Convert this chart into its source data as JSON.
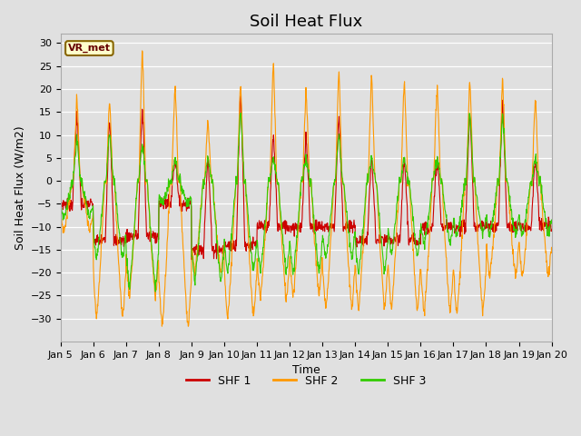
{
  "title": "Soil Heat Flux",
  "xlabel": "Time",
  "ylabel": "Soil Heat Flux (W/m2)",
  "ylim": [
    -35,
    32
  ],
  "yticks": [
    -30,
    -25,
    -20,
    -15,
    -10,
    -5,
    0,
    5,
    10,
    15,
    20,
    25,
    30
  ],
  "colors": {
    "SHF 1": "#cc0000",
    "SHF 2": "#ff9900",
    "SHF 3": "#33cc00"
  },
  "bg_color": "#e0e0e0",
  "annotation_text": "VR_met",
  "annotation_bg": "#ffffcc",
  "annotation_border": "#886600",
  "title_fontsize": 13,
  "axis_label_fontsize": 9,
  "tick_fontsize": 8,
  "n_days": 15,
  "pts_per_day": 96,
  "day_start": 5,
  "shf2_day_peaks": [
    18,
    18,
    29,
    21,
    13,
    21,
    26,
    20,
    24,
    23,
    22,
    21,
    22,
    22,
    18
  ],
  "shf2_night_troughs": [
    -11,
    -30,
    -25,
    -32,
    -20,
    -30,
    -26,
    -25,
    -28,
    -28,
    -28,
    -29,
    -29,
    -21,
    -21
  ],
  "shf1_day_peaks": [
    14,
    14,
    16,
    5,
    5,
    19,
    10,
    10,
    14,
    5,
    5,
    5,
    15,
    17,
    5
  ],
  "shf1_night_vals": [
    -5,
    -13,
    -12,
    -5,
    -15,
    -14,
    -10,
    -10,
    -10,
    -13,
    -13,
    -10,
    -10,
    -10,
    -10
  ],
  "shf3_day_peaks": [
    9,
    11,
    8,
    5,
    5,
    15,
    5,
    5,
    10,
    5,
    5,
    5,
    15,
    14,
    5
  ],
  "shf3_night_troughs": [
    -8,
    -17,
    -23,
    -5,
    -22,
    -20,
    -20,
    -20,
    -17,
    -20,
    -16,
    -14,
    -12,
    -12,
    -12
  ]
}
